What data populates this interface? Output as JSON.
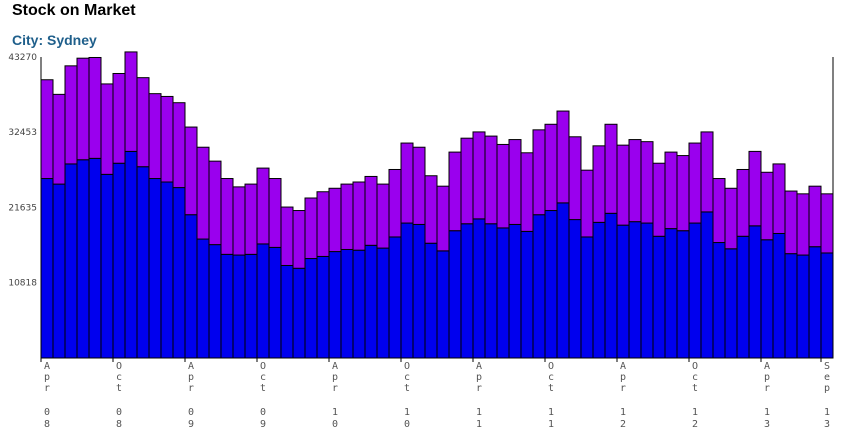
{
  "chart_data": {
    "type": "bar",
    "stacked": true,
    "title": "Stock on Market",
    "subtitle": "City: Sydney",
    "ylim": [
      0,
      43270
    ],
    "yticks": [
      10818,
      21635,
      32453,
      43270
    ],
    "grid": false,
    "x_tick_labels": [
      {
        "month": "Apr",
        "year": "08",
        "index": 0
      },
      {
        "month": "Oct",
        "year": "08",
        "index": 6
      },
      {
        "month": "Apr",
        "year": "09",
        "index": 12
      },
      {
        "month": "Oct",
        "year": "09",
        "index": 18
      },
      {
        "month": "Apr",
        "year": "10",
        "index": 24
      },
      {
        "month": "Oct",
        "year": "10",
        "index": 30
      },
      {
        "month": "Apr",
        "year": "11",
        "index": 36
      },
      {
        "month": "Oct",
        "year": "11",
        "index": 42
      },
      {
        "month": "Apr",
        "year": "12",
        "index": 48
      },
      {
        "month": "Oct",
        "year": "12",
        "index": 54
      },
      {
        "month": "Apr",
        "year": "13",
        "index": 60
      },
      {
        "month": "Sep",
        "year": "13",
        "index": 65
      }
    ],
    "series": [
      {
        "color": "#0000ee",
        "values": [
          25800,
          25000,
          27900,
          28500,
          28700,
          26400,
          28000,
          29700,
          27500,
          25800,
          25300,
          24500,
          20600,
          17100,
          16300,
          14900,
          14800,
          14900,
          16400,
          15900,
          13300,
          12900,
          14300,
          14600,
          15300,
          15600,
          15500,
          16200,
          15800,
          17400,
          19400,
          19200,
          16500,
          15400,
          18300,
          19300,
          20000,
          19300,
          18700,
          19200,
          18200,
          20600,
          21200,
          22300,
          19900,
          17400,
          19500,
          20800,
          19100,
          19600,
          19400,
          17500,
          18600,
          18300,
          19400,
          21000,
          16600,
          15700,
          17500,
          19000,
          17000,
          17900,
          15000,
          14800,
          16000,
          15100
        ]
      },
      {
        "color": "#9a00ee",
        "values": [
          14200,
          12900,
          14100,
          14600,
          14500,
          13000,
          12900,
          14300,
          12800,
          12200,
          12300,
          12200,
          12600,
          13200,
          12000,
          10900,
          9800,
          10100,
          10900,
          9900,
          8400,
          8300,
          8700,
          9300,
          9100,
          9400,
          9800,
          9900,
          9200,
          9700,
          11500,
          11100,
          9700,
          9300,
          11300,
          12300,
          12500,
          12600,
          12000,
          12200,
          11300,
          12200,
          12400,
          13200,
          11900,
          9600,
          11000,
          12800,
          11500,
          11800,
          11700,
          10500,
          11000,
          10800,
          11500,
          11500,
          9200,
          8700,
          9600,
          10700,
          9700,
          10000,
          9000,
          8800,
          8700,
          8500
        ]
      }
    ]
  }
}
